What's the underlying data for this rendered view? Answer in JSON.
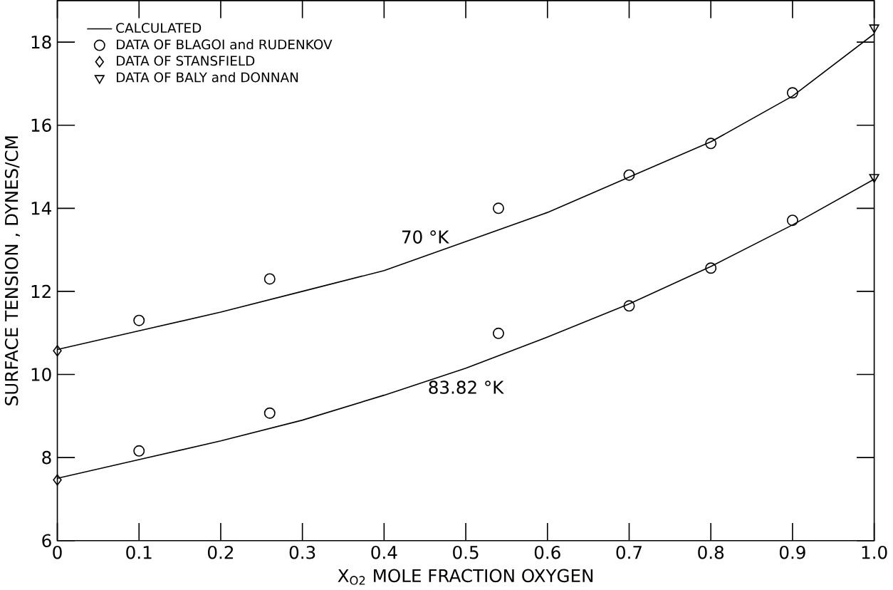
{
  "chart_data": {
    "type": "line",
    "xlabel": "X$_{O2}$  MOLE FRACTION OXYGEN",
    "ylabel": "SURFACE TENSION , DYNES/CM",
    "xlim": [
      0,
      1
    ],
    "ylim": [
      6,
      19
    ],
    "xticks": [
      0,
      0.1,
      0.2,
      0.3,
      0.4,
      0.5,
      0.6,
      0.7,
      0.8,
      0.9,
      {
        "value": 1,
        "label": "1.0"
      }
    ],
    "yticks": [
      6,
      8,
      10,
      12,
      14,
      16,
      18
    ],
    "legend": "top left",
    "grid": false,
    "line_style": "solid",
    "series": [
      {
        "name": "CALCULATED",
        "marker": "none",
        "color": "#000000",
        "x": [
          0,
          0.1,
          0.2,
          0.3,
          0.4,
          0.5,
          0.6,
          0.7,
          0.8,
          0.9,
          1.0
        ],
        "values": [
          10.6,
          11.05,
          11.5,
          12.0,
          12.5,
          13.2,
          13.9,
          14.75,
          15.6,
          16.7,
          18.2
        ]
      },
      {
        "marker": "none",
        "color": "#000000",
        "x": [
          0,
          0.1,
          0.2,
          0.3,
          0.4,
          0.5,
          0.6,
          0.7,
          0.8,
          0.9,
          1.0
        ],
        "values": [
          7.5,
          7.95,
          8.4,
          8.9,
          9.5,
          10.15,
          10.9,
          11.7,
          12.6,
          13.6,
          14.7
        ]
      },
      {
        "name": "DATA OF BLAGOI and RUDENKOV",
        "type": "scatter",
        "marker": "circle",
        "color": "#000000",
        "x": [
          0.1,
          0.26,
          0.54,
          0.7,
          0.8,
          0.9,
          0.1,
          0.26,
          0.54,
          0.7,
          0.8,
          0.9
        ],
        "values": [
          11.3,
          12.3,
          14.0,
          14.8,
          15.56,
          16.78,
          8.16,
          9.07,
          10.99,
          11.65,
          12.56,
          13.71
        ]
      },
      {
        "name": "DATA OF STANSFIELD",
        "type": "scatter",
        "marker": "diamond",
        "color": "#000000",
        "x": [
          0,
          0
        ],
        "values": [
          10.57,
          7.46
        ]
      },
      {
        "name": "DATA OF BALY and DONNAN",
        "type": "scatter",
        "marker": "triangle",
        "color": "#000000",
        "x": [
          1,
          1
        ],
        "values": [
          18.35,
          14.75
        ]
      }
    ],
    "annotations": [
      {
        "text": "70 °K",
        "x": 0.45,
        "y": 12.85
      },
      {
        "text": "83.82 °K",
        "x": 0.5,
        "y": 10.15
      }
    ]
  }
}
